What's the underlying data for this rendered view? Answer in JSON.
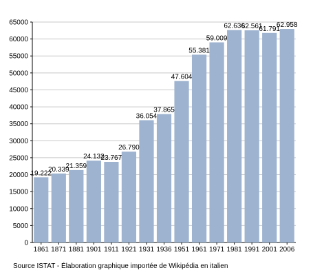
{
  "chart_data": {
    "type": "bar",
    "categories": [
      "1861",
      "1871",
      "1881",
      "1901",
      "1911",
      "1921",
      "1931",
      "1936",
      "1951",
      "1961",
      "1971",
      "1981",
      "1991",
      "2001",
      "2006"
    ],
    "values": [
      19222,
      20339,
      21359,
      24132,
      23767,
      26790,
      36054,
      37865,
      47604,
      55381,
      59009,
      62636,
      62561,
      61791,
      62958
    ],
    "data_labels": [
      "19.222",
      "20.339",
      "21.359",
      "24.132",
      "23.767",
      "26.790",
      "36.054",
      "37.865",
      "47.604",
      "55.381",
      "59.009",
      "62.636",
      "62.561",
      "61.791",
      "62.958"
    ],
    "y_ticks": [
      0,
      5000,
      10000,
      15000,
      20000,
      25000,
      30000,
      35000,
      40000,
      45000,
      50000,
      55000,
      60000,
      65000
    ],
    "ylim": [
      0,
      65000
    ],
    "grid": true,
    "legend": "none",
    "bar_color": "#9db3cf",
    "grid_color": "#c8c8c8"
  },
  "source_note": "Source ISTAT - Élaboration graphique importée de Wikipédia en italien"
}
